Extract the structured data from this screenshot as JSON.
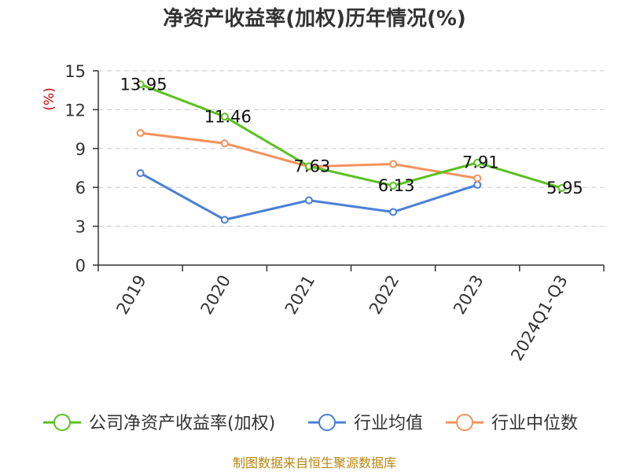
{
  "chart_data": {
    "type": "line",
    "title": "净资产收益率(加权)历年情况(%)",
    "ylabel": "(%)",
    "ylim": [
      0,
      15
    ],
    "yticks": [
      0,
      3,
      6,
      9,
      12,
      15
    ],
    "categories": [
      "2019",
      "2020",
      "2021",
      "2022",
      "2023",
      "2024Q1-Q3"
    ],
    "grid": true,
    "legend_position": "bottom",
    "series": [
      {
        "name": "公司净资产收益率(加权)",
        "color": "#5ac11e",
        "values": [
          13.95,
          11.46,
          7.63,
          6.13,
          7.91,
          5.95
        ],
        "labels": [
          "13.95",
          "11.46",
          "7.63",
          "6.13",
          "7.91",
          "5.95"
        ]
      },
      {
        "name": "行业均值",
        "color": "#4a7fd8",
        "values": [
          7.1,
          3.5,
          5.0,
          4.1,
          6.2,
          null
        ]
      },
      {
        "name": "行业中位数",
        "color": "#f5915a",
        "values": [
          10.2,
          9.4,
          7.6,
          7.8,
          6.7,
          null
        ]
      }
    ],
    "source": "制图数据来自恒生聚源数据库"
  }
}
